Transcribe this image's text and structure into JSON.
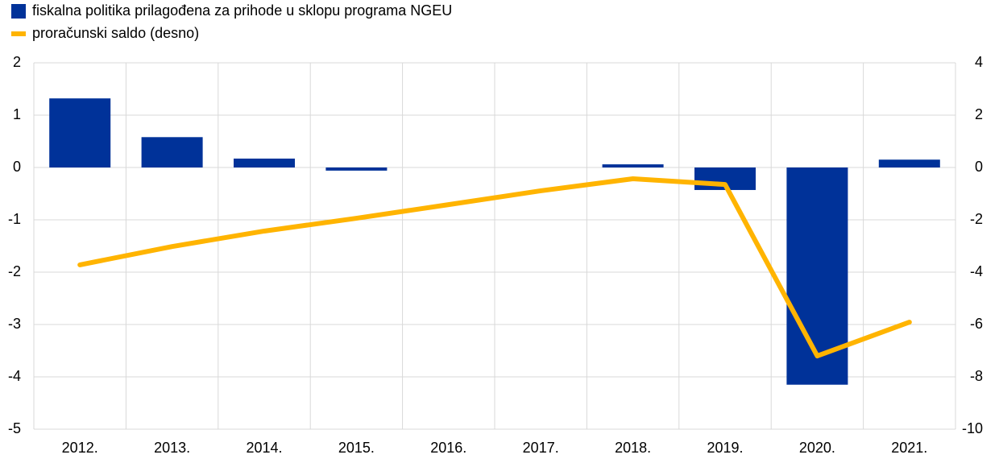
{
  "chart_data": {
    "type": "bar-line",
    "categories": [
      "2012.",
      "2013.",
      "2014.",
      "2015.",
      "2016.",
      "2017.",
      "2018.",
      "2019.",
      "2020.",
      "2021."
    ],
    "series": [
      {
        "name": "fiskalna politika prilagođena za prihode u sklopu programa NGEU",
        "type": "bar",
        "color": "#003299",
        "values": [
          1.32,
          0.58,
          0.17,
          -0.06,
          0,
          0,
          0.06,
          -0.43,
          -4.15,
          0.15
        ]
      },
      {
        "name": "proračunski saldo (desno)",
        "type": "line",
        "axis": "y2",
        "color": "#ffb400",
        "values": [
          -3.72,
          -3.02,
          -2.43,
          -1.94,
          -1.42,
          -0.89,
          -0.43,
          -0.65,
          -7.2,
          -5.91
        ]
      }
    ],
    "ylim": [
      -5,
      2
    ],
    "yticks": [
      -5,
      -4,
      -3,
      -2,
      -1,
      0,
      1,
      2
    ],
    "y2lim": [
      -10,
      4
    ],
    "y2ticks": [
      -10,
      -8,
      -6,
      -4,
      -2,
      0,
      2,
      4
    ],
    "grid": true,
    "legend": "top-left"
  }
}
